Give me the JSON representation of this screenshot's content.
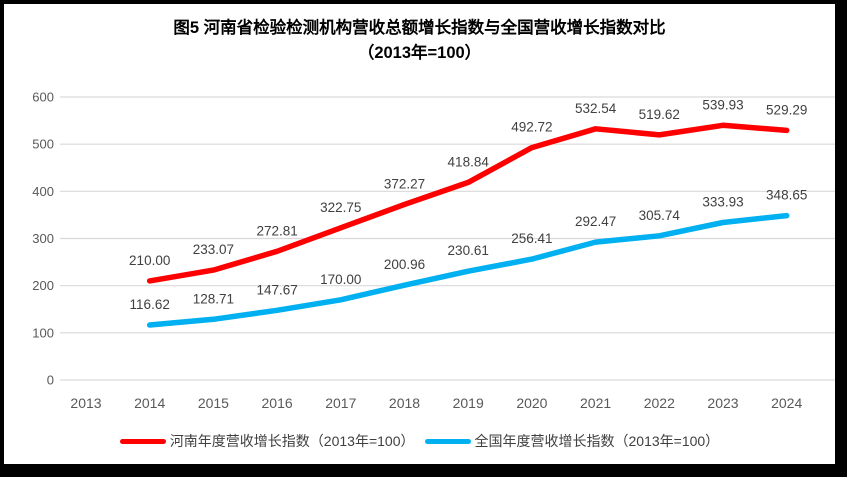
{
  "title": {
    "line1": "图5  河南省检验检测机构营收总额增长指数与全国营收增长指数对比",
    "line2": "（2013年=100）"
  },
  "colors": {
    "henan_line": "#FF0000",
    "national_line": "#00B0F0",
    "gridline": "#D9D9D9",
    "tick_label": "#595959",
    "data_label": "#404040",
    "frame_border": "#000000"
  },
  "chart_data": {
    "type": "line",
    "title": "图5  河南省检验检测机构营收总额增长指数与全国营收增长指数对比（2013年=100）",
    "categories": [
      "2013",
      "2014",
      "2015",
      "2016",
      "2017",
      "2018",
      "2019",
      "2020",
      "2021",
      "2022",
      "2023",
      "2024"
    ],
    "ylim": [
      0,
      600
    ],
    "yticks": [
      "0",
      "100",
      "200",
      "300",
      "400",
      "500",
      "600"
    ],
    "grid": "horizontal",
    "legend_position": "bottom",
    "series": [
      {
        "id": "henan",
        "name": "河南年度营收增长指数（2013年=100）",
        "color": "#FF0000",
        "start_category": "2014",
        "values": [
          210.0,
          233.07,
          272.81,
          322.75,
          372.27,
          418.84,
          492.72,
          532.54,
          519.62,
          539.93,
          529.29
        ],
        "labels": [
          "210.00",
          "233.07",
          "272.81",
          "322.75",
          "372.27",
          "418.84",
          "492.72",
          "532.54",
          "519.62",
          "539.93",
          "529.29"
        ]
      },
      {
        "id": "national",
        "name": "全国年度营收增长指数（2013年=100）",
        "color": "#00B0F0",
        "start_category": "2014",
        "values": [
          116.62,
          128.71,
          147.67,
          170.0,
          200.96,
          230.61,
          256.41,
          292.47,
          305.74,
          333.93,
          348.65
        ],
        "labels": [
          "116.62",
          "128.71",
          "147.67",
          "170.00",
          "200.96",
          "230.61",
          "256.41",
          "292.47",
          "305.74",
          "333.93",
          "348.65"
        ]
      }
    ]
  }
}
